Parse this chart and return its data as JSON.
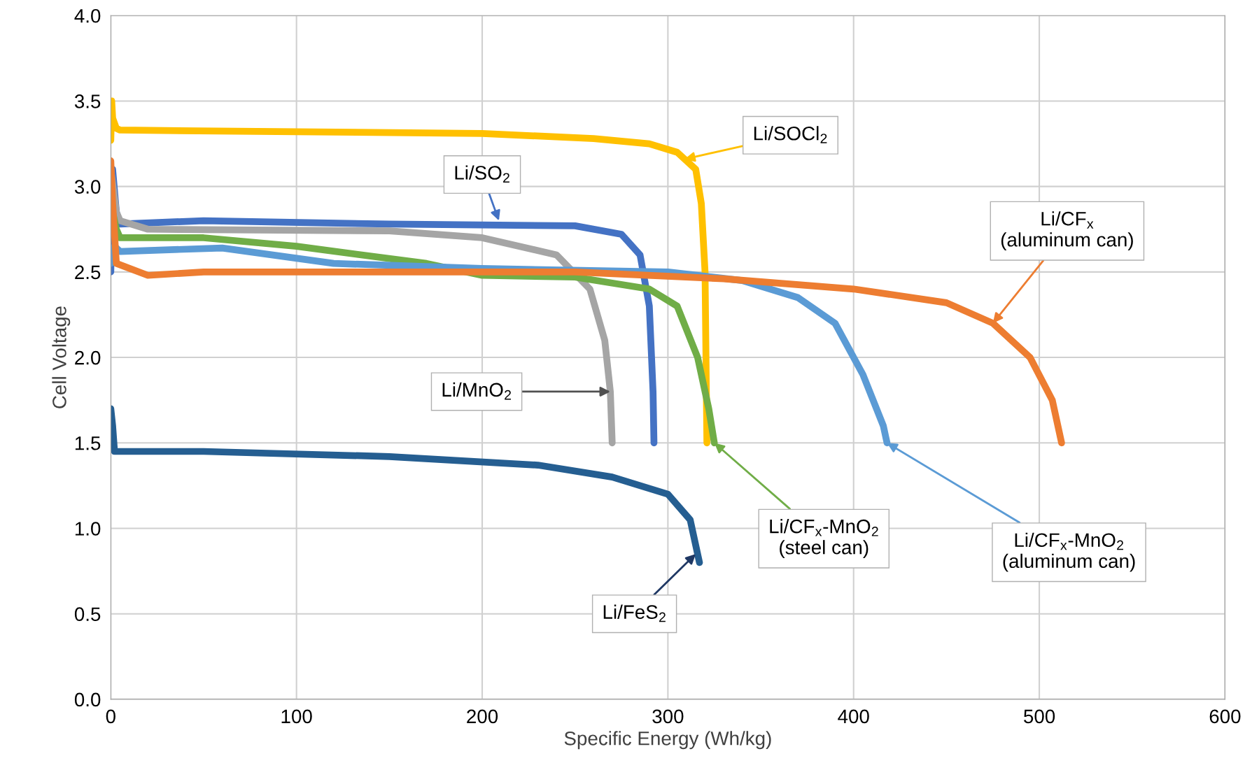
{
  "chart_data": {
    "type": "line",
    "xlabel": "Specific Energy (Wh/kg)",
    "ylabel": "Cell Voltage",
    "xlim": [
      0,
      600
    ],
    "xticks": [
      0,
      100,
      200,
      300,
      400,
      500,
      600
    ],
    "ylim": [
      0,
      4
    ],
    "yticks": [
      {
        "value": 0,
        "label": "0.0"
      },
      {
        "value": 0.5,
        "label": "0.5"
      },
      {
        "value": 1,
        "label": "1.0"
      },
      {
        "value": 1.5,
        "label": "1.5"
      },
      {
        "value": 2,
        "label": "2.0"
      },
      {
        "value": 2.5,
        "label": "2.5"
      },
      {
        "value": 3,
        "label": "3.0"
      },
      {
        "value": 3.5,
        "label": "3.5"
      },
      {
        "value": 4,
        "label": "4.0"
      }
    ],
    "grid": true,
    "line_style": "solid",
    "series": [
      {
        "color": "#ffc000",
        "x": [
          0,
          0.5,
          1,
          3,
          5,
          100,
          200,
          260,
          290,
          305,
          315,
          318,
          320,
          321
        ],
        "values": [
          3.27,
          3.5,
          3.4,
          3.34,
          3.33,
          3.32,
          3.31,
          3.28,
          3.25,
          3.2,
          3.1,
          2.9,
          2.5,
          1.5
        ]
      },
      {
        "color": "#4472c4",
        "x": [
          0,
          1,
          3,
          5,
          50,
          150,
          250,
          275,
          285,
          290,
          292,
          292.5
        ],
        "values": [
          2.5,
          3.1,
          2.85,
          2.78,
          2.8,
          2.78,
          2.77,
          2.72,
          2.6,
          2.3,
          1.8,
          1.5
        ]
      },
      {
        "color": "#a5a5a5",
        "x": [
          0,
          3,
          5,
          20,
          150,
          200,
          240,
          258,
          266,
          269,
          270
        ],
        "values": [
          3.1,
          2.85,
          2.8,
          2.75,
          2.74,
          2.7,
          2.6,
          2.4,
          2.1,
          1.8,
          1.5
        ]
      },
      {
        "color": "#70ad47",
        "x": [
          0,
          3,
          5,
          50,
          100,
          170,
          200,
          250,
          290,
          305,
          316,
          322,
          325
        ],
        "values": [
          2.9,
          2.75,
          2.7,
          2.7,
          2.65,
          2.55,
          2.48,
          2.47,
          2.4,
          2.3,
          2.0,
          1.7,
          1.5
        ]
      },
      {
        "color": "#5b9bd5",
        "x": [
          0,
          2,
          5,
          60,
          120,
          200,
          300,
          340,
          370,
          390,
          405,
          416,
          418
        ],
        "values": [
          2.55,
          2.65,
          2.62,
          2.64,
          2.55,
          2.52,
          2.5,
          2.45,
          2.35,
          2.2,
          1.9,
          1.6,
          1.5
        ]
      },
      {
        "color": "#ed7d31",
        "x": [
          0,
          1,
          3,
          20,
          50,
          150,
          250,
          330,
          400,
          450,
          475,
          495,
          507,
          512
        ],
        "values": [
          3.15,
          2.9,
          2.55,
          2.48,
          2.5,
          2.5,
          2.5,
          2.46,
          2.4,
          2.32,
          2.2,
          2.0,
          1.75,
          1.5
        ]
      },
      {
        "color": "#255e91",
        "x": [
          0,
          1,
          2,
          50,
          150,
          230,
          270,
          300,
          312,
          317
        ],
        "values": [
          1.7,
          1.6,
          1.45,
          1.45,
          1.42,
          1.37,
          1.3,
          1.2,
          1.05,
          0.8
        ]
      }
    ],
    "annotations": [
      {
        "text": "Li/SOCl$_{2}$",
        "x": 309,
        "y": 3.16
      },
      {
        "text": "Li/SO$_{2}$",
        "x": 209,
        "y": 2.8
      },
      {
        "text": "Li/CF$_{x}$\n(aluminum can)",
        "x": 475,
        "y": 2.2
      },
      {
        "text": "Li/MnO$_{2}$",
        "x": 269,
        "y": 1.8
      },
      {
        "text": "Li/CF$_{x}$-MnO$_{2}$\n(steel can)",
        "x": 325,
        "y": 1.5
      },
      {
        "text": "Li/CF$_{x}$-MnO$_{2}$\n(aluminum can)",
        "x": 418,
        "y": 1.5
      },
      {
        "text": "Li/FeS$_{2}$",
        "x": 315,
        "y": 0.85
      }
    ]
  }
}
